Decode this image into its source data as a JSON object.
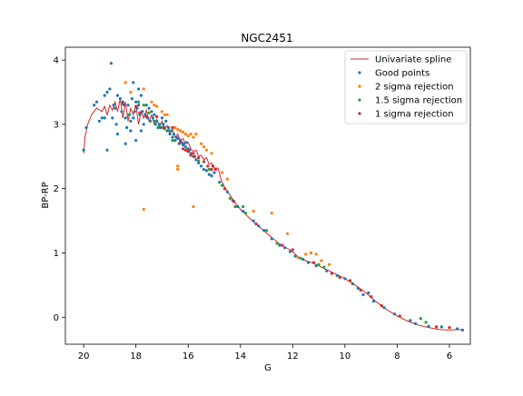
{
  "colors": {
    "spline": "#d62728",
    "good": "#1f77b4",
    "sigma2": "#ff7f0e",
    "sigma15": "#2ca02c",
    "sigma1": "#d62728",
    "axis": "#000000",
    "legend_border": "#cccccc"
  },
  "chart_data": {
    "type": "scatter",
    "title": "NGC2451",
    "xlabel": "G",
    "ylabel": "BP-RP",
    "xlim": [
      20.7,
      5.2
    ],
    "ylim": [
      -0.42,
      4.2
    ],
    "x_inverted": true,
    "xticks": [
      20,
      18,
      16,
      14,
      12,
      10,
      8,
      6
    ],
    "xtick_labels": [
      "20",
      "18",
      "16",
      "14",
      "12",
      "10",
      "8",
      "6"
    ],
    "yticks": [
      0,
      1,
      2,
      3,
      4
    ],
    "ytick_labels": [
      "0",
      "1",
      "2",
      "3",
      "4"
    ],
    "grid": false,
    "legend_position": "upper right",
    "legend": [
      {
        "label": "Univariate spline",
        "kind": "line",
        "color_key": "spline"
      },
      {
        "label": "Good points",
        "kind": "marker",
        "color_key": "good"
      },
      {
        "label": "2 sigma rejection",
        "kind": "marker",
        "color_key": "sigma2"
      },
      {
        "label": "1.5 sigma rejection",
        "kind": "marker",
        "color_key": "sigma15"
      },
      {
        "label": "1 sigma rejection",
        "kind": "marker",
        "color_key": "sigma1"
      }
    ],
    "spline": [
      [
        20.0,
        2.55
      ],
      [
        19.95,
        2.8
      ],
      [
        19.85,
        3.0
      ],
      [
        19.7,
        3.15
      ],
      [
        19.5,
        3.25
      ],
      [
        19.3,
        3.2
      ],
      [
        19.2,
        3.28
      ],
      [
        19.1,
        3.15
      ],
      [
        19.0,
        3.3
      ],
      [
        18.9,
        3.22
      ],
      [
        18.8,
        3.35
      ],
      [
        18.7,
        3.2
      ],
      [
        18.6,
        3.4
      ],
      [
        18.5,
        3.1
      ],
      [
        18.4,
        3.35
      ],
      [
        18.3,
        3.05
      ],
      [
        18.2,
        3.25
      ],
      [
        18.1,
        3.15
      ],
      [
        18.0,
        3.3
      ],
      [
        17.9,
        3.0
      ],
      [
        17.8,
        3.2
      ],
      [
        17.7,
        3.1
      ],
      [
        17.6,
        3.22
      ],
      [
        17.5,
        3.05
      ],
      [
        17.4,
        3.15
      ],
      [
        17.3,
        3.0
      ],
      [
        17.2,
        3.08
      ],
      [
        17.1,
        2.95
      ],
      [
        17.0,
        3.05
      ],
      [
        16.9,
        2.92
      ],
      [
        16.8,
        2.98
      ],
      [
        16.7,
        2.85
      ],
      [
        16.6,
        2.92
      ],
      [
        16.5,
        2.8
      ],
      [
        16.4,
        2.85
      ],
      [
        16.3,
        2.75
      ],
      [
        16.2,
        2.78
      ],
      [
        16.1,
        2.7
      ],
      [
        16.0,
        2.72
      ],
      [
        15.9,
        2.62
      ],
      [
        15.8,
        2.58
      ],
      [
        15.7,
        2.6
      ],
      [
        15.6,
        2.5
      ],
      [
        15.5,
        2.52
      ],
      [
        15.4,
        2.45
      ],
      [
        15.3,
        2.48
      ],
      [
        15.2,
        2.38
      ],
      [
        15.1,
        2.4
      ],
      [
        15.0,
        2.32
      ],
      [
        14.85,
        2.32
      ],
      [
        14.75,
        2.15
      ],
      [
        14.6,
        2.02
      ],
      [
        14.4,
        1.9
      ],
      [
        14.2,
        1.78
      ],
      [
        14.0,
        1.68
      ],
      [
        13.6,
        1.52
      ],
      [
        13.2,
        1.38
      ],
      [
        12.8,
        1.24
      ],
      [
        12.5,
        1.14
      ],
      [
        12.2,
        1.07
      ],
      [
        12.0,
        1.02
      ],
      [
        11.8,
        0.94
      ],
      [
        11.5,
        0.88
      ],
      [
        11.2,
        0.84
      ],
      [
        10.8,
        0.76
      ],
      [
        10.4,
        0.68
      ],
      [
        10.0,
        0.6
      ],
      [
        9.6,
        0.5
      ],
      [
        9.2,
        0.38
      ],
      [
        8.8,
        0.24
      ],
      [
        8.4,
        0.12
      ],
      [
        8.0,
        0.02
      ],
      [
        7.6,
        -0.06
      ],
      [
        7.2,
        -0.12
      ],
      [
        6.8,
        -0.16
      ],
      [
        6.4,
        -0.19
      ],
      [
        6.0,
        -0.2
      ],
      [
        5.6,
        -0.19
      ],
      [
        5.45,
        -0.2
      ]
    ],
    "good_points": [
      [
        20.0,
        2.6
      ],
      [
        19.9,
        2.95
      ],
      [
        19.6,
        3.3
      ],
      [
        19.5,
        3.35
      ],
      [
        19.4,
        3.05
      ],
      [
        19.3,
        3.1
      ],
      [
        19.2,
        3.45
      ],
      [
        19.1,
        3.5
      ],
      [
        19.0,
        3.55
      ],
      [
        18.95,
        3.95
      ],
      [
        18.9,
        3.1
      ],
      [
        18.85,
        3.3
      ],
      [
        18.8,
        3.25
      ],
      [
        18.75,
        3.0
      ],
      [
        18.7,
        3.45
      ],
      [
        18.6,
        3.4
      ],
      [
        18.55,
        3.2
      ],
      [
        18.5,
        3.35
      ],
      [
        18.45,
        3.3
      ],
      [
        18.4,
        3.1
      ],
      [
        18.35,
        2.95
      ],
      [
        18.3,
        3.3
      ],
      [
        18.25,
        3.15
      ],
      [
        18.2,
        3.05
      ],
      [
        18.15,
        3.4
      ],
      [
        18.1,
        3.1
      ],
      [
        18.05,
        3.2
      ],
      [
        18.0,
        3.35
      ],
      [
        17.95,
        3.25
      ],
      [
        17.9,
        3.3
      ],
      [
        17.85,
        3.15
      ],
      [
        17.8,
        3.45
      ],
      [
        17.75,
        3.2
      ],
      [
        17.7,
        3.0
      ],
      [
        17.65,
        3.15
      ],
      [
        17.6,
        3.3
      ],
      [
        17.55,
        3.1
      ],
      [
        17.5,
        3.25
      ],
      [
        17.45,
        3.05
      ],
      [
        17.4,
        3.2
      ],
      [
        17.35,
        3.1
      ],
      [
        17.3,
        3.15
      ],
      [
        17.25,
        3.0
      ],
      [
        17.2,
        3.05
      ],
      [
        17.15,
        2.95
      ],
      [
        17.1,
        3.0
      ],
      [
        17.05,
        2.95
      ],
      [
        17.0,
        3.1
      ],
      [
        16.95,
        3.0
      ],
      [
        16.9,
        2.95
      ],
      [
        16.85,
        3.05
      ],
      [
        16.8,
        2.9
      ],
      [
        16.75,
        2.95
      ],
      [
        16.7,
        2.85
      ],
      [
        16.65,
        2.9
      ],
      [
        16.6,
        2.8
      ],
      [
        16.55,
        2.85
      ],
      [
        16.5,
        2.75
      ],
      [
        16.45,
        2.8
      ],
      [
        16.4,
        2.78
      ],
      [
        16.35,
        2.7
      ],
      [
        16.3,
        2.75
      ],
      [
        16.25,
        2.72
      ],
      [
        16.2,
        2.68
      ],
      [
        16.15,
        2.7
      ],
      [
        16.1,
        2.65
      ],
      [
        16.05,
        2.72
      ],
      [
        16.0,
        2.62
      ],
      [
        15.95,
        2.6
      ],
      [
        15.9,
        2.55
      ],
      [
        15.8,
        2.5
      ],
      [
        15.7,
        2.45
      ],
      [
        15.6,
        2.4
      ],
      [
        15.5,
        2.35
      ],
      [
        15.4,
        2.3
      ],
      [
        15.3,
        2.28
      ],
      [
        15.2,
        2.22
      ],
      [
        15.1,
        2.2
      ],
      [
        15.0,
        2.25
      ],
      [
        19.2,
        3.1
      ],
      [
        18.7,
        2.85
      ],
      [
        18.2,
        2.9
      ],
      [
        19.1,
        2.6
      ],
      [
        18.0,
        2.75
      ],
      [
        18.1,
        3.65
      ],
      [
        17.9,
        3.55
      ],
      [
        18.4,
        2.7
      ],
      [
        17.8,
        2.9
      ],
      [
        14.8,
        2.1
      ],
      [
        14.5,
        1.95
      ],
      [
        14.3,
        1.82
      ],
      [
        14.1,
        1.72
      ],
      [
        13.9,
        1.65
      ],
      [
        13.5,
        1.5
      ],
      [
        13.3,
        1.42
      ],
      [
        13.1,
        1.35
      ],
      [
        12.8,
        1.22
      ],
      [
        12.5,
        1.12
      ],
      [
        12.3,
        1.08
      ],
      [
        12.1,
        1.02
      ],
      [
        11.9,
        0.95
      ],
      [
        11.6,
        0.9
      ],
      [
        11.4,
        0.85
      ],
      [
        11.1,
        0.8
      ],
      [
        10.7,
        0.72
      ],
      [
        10.3,
        0.65
      ],
      [
        10.0,
        0.6
      ],
      [
        9.7,
        0.52
      ],
      [
        9.5,
        0.45
      ],
      [
        9.3,
        0.35
      ],
      [
        9.1,
        0.38
      ],
      [
        8.9,
        0.25
      ],
      [
        8.5,
        0.15
      ],
      [
        8.1,
        0.05
      ],
      [
        7.5,
        -0.05
      ],
      [
        7.3,
        -0.1
      ],
      [
        6.8,
        -0.14
      ],
      [
        6.3,
        -0.15
      ],
      [
        5.7,
        -0.18
      ],
      [
        5.5,
        -0.2
      ]
    ],
    "sigma2_rejection": [
      [
        18.4,
        3.65
      ],
      [
        18.2,
        3.5
      ],
      [
        17.7,
        3.55
      ],
      [
        17.4,
        3.35
      ],
      [
        17.3,
        3.3
      ],
      [
        17.2,
        3.28
      ],
      [
        17.0,
        3.2
      ],
      [
        16.9,
        3.15
      ],
      [
        16.8,
        3.15
      ],
      [
        16.5,
        2.95
      ],
      [
        16.4,
        2.92
      ],
      [
        16.3,
        2.9
      ],
      [
        16.2,
        2.88
      ],
      [
        16.1,
        2.85
      ],
      [
        16.0,
        2.82
      ],
      [
        15.9,
        2.85
      ],
      [
        15.8,
        2.8
      ],
      [
        15.7,
        2.85
      ],
      [
        15.5,
        2.7
      ],
      [
        15.4,
        2.65
      ],
      [
        15.3,
        2.6
      ],
      [
        15.1,
        2.55
      ],
      [
        16.4,
        2.3
      ],
      [
        16.4,
        2.35
      ],
      [
        17.7,
        1.68
      ],
      [
        15.8,
        1.72
      ],
      [
        14.5,
        2.15
      ],
      [
        13.5,
        1.65
      ],
      [
        12.8,
        1.62
      ],
      [
        12.2,
        1.3
      ],
      [
        11.5,
        0.98
      ],
      [
        11.3,
        1.0
      ],
      [
        11.1,
        0.98
      ],
      [
        10.9,
        0.88
      ],
      [
        10.6,
        0.82
      ],
      [
        11.8,
        0.93
      ],
      [
        14.7,
        2.25
      ]
    ],
    "sigma15_rejection": [
      [
        18.3,
        3.15
      ],
      [
        17.9,
        3.35
      ],
      [
        17.7,
        3.3
      ],
      [
        17.5,
        3.18
      ],
      [
        17.3,
        3.05
      ],
      [
        17.1,
        2.98
      ],
      [
        16.9,
        2.93
      ],
      [
        16.7,
        2.9
      ],
      [
        16.6,
        2.75
      ],
      [
        15.6,
        2.43
      ],
      [
        15.2,
        2.3
      ],
      [
        14.7,
        2.05
      ],
      [
        14.4,
        1.85
      ],
      [
        14.2,
        1.72
      ],
      [
        13.9,
        1.72
      ],
      [
        13.8,
        1.62
      ],
      [
        13.0,
        1.35
      ],
      [
        12.6,
        1.15
      ],
      [
        11.7,
        0.92
      ],
      [
        11.0,
        0.82
      ],
      [
        10.8,
        0.78
      ],
      [
        7.1,
        -0.02
      ],
      [
        6.9,
        -0.08
      ]
    ],
    "sigma1_rejection": [
      [
        18.5,
        3.32
      ],
      [
        18.0,
        3.28
      ],
      [
        17.85,
        3.18
      ],
      [
        17.6,
        3.12
      ],
      [
        17.2,
        3.12
      ],
      [
        16.95,
        2.95
      ],
      [
        16.6,
        2.95
      ],
      [
        16.3,
        2.72
      ],
      [
        16.2,
        2.62
      ],
      [
        16.1,
        2.6
      ],
      [
        16.0,
        2.58
      ],
      [
        15.9,
        2.52
      ],
      [
        15.8,
        2.55
      ],
      [
        15.75,
        2.5
      ],
      [
        15.6,
        2.48
      ],
      [
        15.4,
        2.42
      ],
      [
        15.25,
        2.35
      ],
      [
        15.1,
        2.3
      ],
      [
        15.05,
        2.35
      ],
      [
        14.95,
        2.3
      ],
      [
        14.6,
        2.0
      ],
      [
        14.25,
        1.8
      ],
      [
        13.4,
        1.45
      ],
      [
        12.4,
        1.12
      ],
      [
        12.0,
        1.05
      ],
      [
        11.2,
        0.85
      ],
      [
        10.5,
        0.68
      ],
      [
        10.2,
        0.62
      ],
      [
        9.8,
        0.57
      ],
      [
        9.4,
        0.42
      ],
      [
        9.0,
        0.32
      ],
      [
        8.6,
        0.18
      ],
      [
        7.9,
        0.02
      ],
      [
        6.5,
        -0.15
      ],
      [
        6.0,
        -0.16
      ]
    ]
  }
}
